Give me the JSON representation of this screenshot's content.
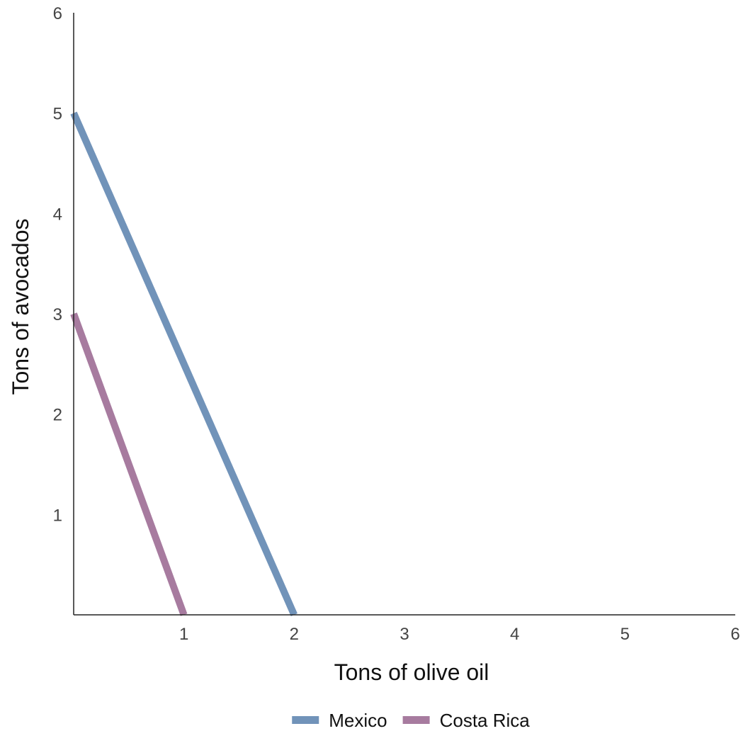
{
  "chart_data": {
    "type": "line",
    "title": "",
    "xlabel": "Tons of olive oil",
    "ylabel": "Tons of avocados",
    "xlim": [
      0,
      6
    ],
    "ylim": [
      0,
      6
    ],
    "x_ticks": [
      "1",
      "2",
      "3",
      "4",
      "5",
      "6"
    ],
    "y_ticks": [
      "1",
      "2",
      "3",
      "4",
      "5",
      "6"
    ],
    "grid": false,
    "legend_position": "bottom-center",
    "series": [
      {
        "name": "Mexico",
        "color": "#7193b9",
        "points": [
          [
            0,
            5
          ],
          [
            2,
            0
          ]
        ]
      },
      {
        "name": "Costa Rica",
        "color": "#a77b9f",
        "points": [
          [
            0,
            3
          ],
          [
            1,
            0
          ]
        ]
      }
    ]
  }
}
